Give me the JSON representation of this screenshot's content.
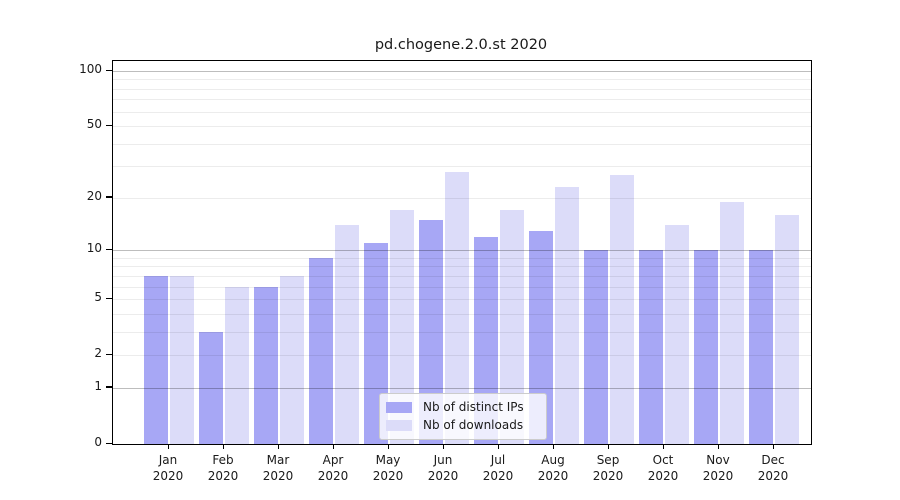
{
  "figure": {
    "background": "#ffffff",
    "text_color": "#1a1a1a"
  },
  "chart_data": {
    "type": "bar",
    "title": "pd.chogene.2.0.st 2020",
    "categories": [
      "Jan 2020",
      "Feb 2020",
      "Mar 2020",
      "Apr 2020",
      "May 2020",
      "Jun 2020",
      "Jul 2020",
      "Aug 2020",
      "Sep 2020",
      "Oct 2020",
      "Nov 2020",
      "Dec 2020"
    ],
    "series": [
      {
        "name": "Nb of distinct IPs",
        "color": "#a7a7f5",
        "values": [
          7,
          3,
          6,
          9,
          11,
          15,
          12,
          13,
          10,
          10,
          10,
          10
        ]
      },
      {
        "name": "Nb of downloads",
        "color": "#dcdcf9",
        "values": [
          7,
          6,
          7,
          14,
          17,
          28,
          17,
          23,
          27,
          14,
          19,
          16
        ]
      }
    ],
    "xlabel": "",
    "ylabel": "",
    "yscale": "log1p",
    "ylim": [
      0,
      113
    ],
    "yticks": [
      100,
      50,
      20,
      10,
      5,
      2,
      1,
      0
    ],
    "minor_gridlines": [
      2,
      3,
      4,
      5,
      6,
      7,
      8,
      9,
      20,
      30,
      40,
      50,
      60,
      70,
      80,
      90
    ],
    "major_gridlines": [
      1,
      10,
      100
    ],
    "grid": true,
    "grid_minor_color": "rgba(0,0,0,0.075)",
    "grid_major_color": "rgba(0,0,0,0.26)",
    "legend_position": "lower center inside",
    "legend": [
      "Nb of distinct IPs",
      "Nb of downloads"
    ]
  }
}
